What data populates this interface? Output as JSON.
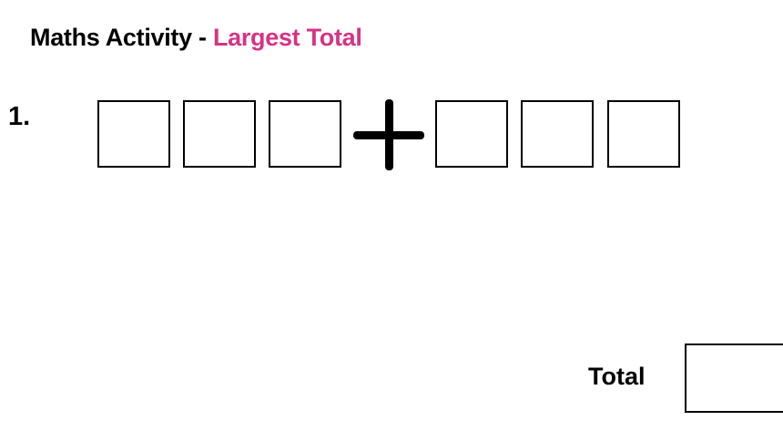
{
  "title": {
    "prefix": "Maths Activity - ",
    "accent": "Largest Total",
    "accent_color": "#d63384"
  },
  "question": {
    "number": "1.",
    "operator": "plus",
    "left_digits": 3,
    "right_digits": 3
  },
  "total": {
    "label": "Total"
  }
}
